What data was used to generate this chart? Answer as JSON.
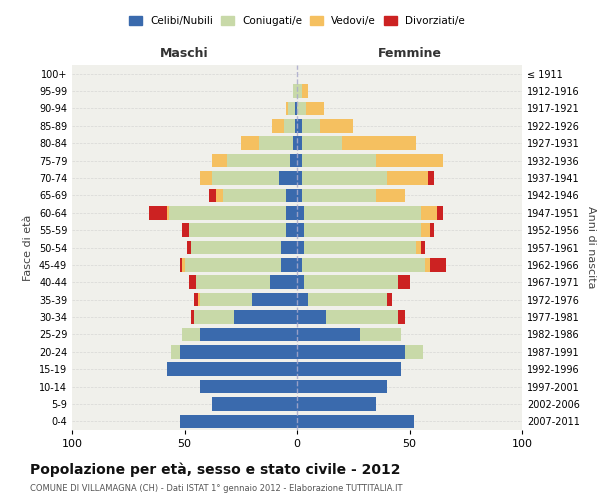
{
  "age_groups": [
    "100+",
    "95-99",
    "90-94",
    "85-89",
    "80-84",
    "75-79",
    "70-74",
    "65-69",
    "60-64",
    "55-59",
    "50-54",
    "45-49",
    "40-44",
    "35-39",
    "30-34",
    "25-29",
    "20-24",
    "15-19",
    "10-14",
    "5-9",
    "0-4"
  ],
  "birth_years": [
    "≤ 1911",
    "1912-1916",
    "1917-1921",
    "1922-1926",
    "1927-1931",
    "1932-1936",
    "1937-1941",
    "1942-1946",
    "1947-1951",
    "1952-1956",
    "1957-1961",
    "1962-1966",
    "1967-1971",
    "1972-1976",
    "1977-1981",
    "1982-1986",
    "1987-1991",
    "1992-1996",
    "1997-2001",
    "2002-2006",
    "2007-2011"
  ],
  "colors": {
    "celibi": "#3A6AAD",
    "coniugati": "#C8D9A8",
    "vedovi": "#F5C060",
    "divorziati": "#CC2222"
  },
  "males": {
    "celibi": [
      0,
      0,
      1,
      1,
      2,
      3,
      8,
      5,
      5,
      5,
      7,
      7,
      12,
      20,
      28,
      43,
      52,
      58,
      43,
      38,
      52
    ],
    "coniugati": [
      0,
      2,
      3,
      5,
      15,
      28,
      30,
      28,
      52,
      43,
      40,
      43,
      33,
      23,
      18,
      8,
      4,
      0,
      0,
      0,
      0
    ],
    "vedovi": [
      0,
      0,
      1,
      5,
      8,
      7,
      5,
      3,
      1,
      0,
      0,
      1,
      0,
      1,
      0,
      0,
      0,
      0,
      0,
      0,
      0
    ],
    "divorziati": [
      0,
      0,
      0,
      0,
      0,
      0,
      0,
      3,
      8,
      3,
      2,
      1,
      3,
      2,
      1,
      0,
      0,
      0,
      0,
      0,
      0
    ]
  },
  "females": {
    "nubili": [
      0,
      0,
      0,
      2,
      2,
      2,
      2,
      2,
      3,
      3,
      3,
      2,
      3,
      5,
      13,
      28,
      48,
      46,
      40,
      35,
      52
    ],
    "coniugate": [
      0,
      2,
      4,
      8,
      18,
      33,
      38,
      33,
      52,
      52,
      50,
      55,
      42,
      35,
      32,
      18,
      8,
      0,
      0,
      0,
      0
    ],
    "vedove": [
      0,
      3,
      8,
      15,
      33,
      30,
      18,
      13,
      7,
      4,
      2,
      2,
      0,
      0,
      0,
      0,
      0,
      0,
      0,
      0,
      0
    ],
    "divorziate": [
      0,
      0,
      0,
      0,
      0,
      0,
      3,
      0,
      3,
      2,
      2,
      7,
      5,
      2,
      3,
      0,
      0,
      0,
      0,
      0,
      0
    ]
  },
  "title": "Popolazione per età, sesso e stato civile - 2012",
  "subtitle": "COMUNE DI VILLAMAGNA (CH) - Dati ISTAT 1° gennaio 2012 - Elaborazione TUTTITALIA.IT",
  "xlabel_left": "Maschi",
  "xlabel_right": "Femmine",
  "ylabel_left": "Fasce di età",
  "ylabel_right": "Anni di nascita",
  "xlim": 100,
  "legend_labels": [
    "Celibi/Nubili",
    "Coniugati/e",
    "Vedovi/e",
    "Divorziati/e"
  ],
  "bg_color": "#FFFFFF",
  "plot_bg": "#F0F0EB",
  "grid_color": "#CCCCCC"
}
